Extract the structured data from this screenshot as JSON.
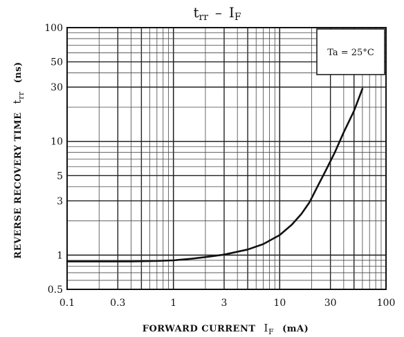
{
  "chart_data": {
    "type": "line",
    "title": {
      "y_symbol": "t",
      "y_sub": "rr",
      "separator": "–",
      "x_symbol": "I",
      "x_sub": "F"
    },
    "xlabel": {
      "text": "FORWARD CURRENT",
      "symbol": "I",
      "sub": "F",
      "unit": "(mA)"
    },
    "ylabel": {
      "text": "REVERSE RECOVERY TIME",
      "symbol": "t",
      "sub": "rr",
      "unit": "(ns)"
    },
    "x_scale": "log",
    "y_scale": "log",
    "xlim": [
      0.1,
      100
    ],
    "ylim": [
      0.5,
      100
    ],
    "grid": true,
    "x_ticks": [
      {
        "value": 0.1,
        "label": "0.1"
      },
      {
        "value": 0.3,
        "label": "0.3"
      },
      {
        "value": 1,
        "label": "1"
      },
      {
        "value": 3,
        "label": "3"
      },
      {
        "value": 10,
        "label": "10"
      },
      {
        "value": 30,
        "label": "30"
      },
      {
        "value": 100,
        "label": "100"
      }
    ],
    "y_ticks": [
      {
        "value": 0.5,
        "label": "0.5"
      },
      {
        "value": 1,
        "label": "1"
      },
      {
        "value": 3,
        "label": "3"
      },
      {
        "value": 5,
        "label": "5"
      },
      {
        "value": 10,
        "label": "10"
      },
      {
        "value": 30,
        "label": "30"
      },
      {
        "value": 50,
        "label": "50"
      },
      {
        "value": 100,
        "label": "100"
      }
    ],
    "legend": {
      "text": "Ta = 25°C",
      "placement": "top-right"
    },
    "series": [
      {
        "color": "#111111",
        "points": [
          [
            0.1,
            0.88
          ],
          [
            0.2,
            0.88
          ],
          [
            0.4,
            0.88
          ],
          [
            0.7,
            0.89
          ],
          [
            1.0,
            0.9
          ],
          [
            1.5,
            0.93
          ],
          [
            2.0,
            0.96
          ],
          [
            3.0,
            1.01
          ],
          [
            5.0,
            1.12
          ],
          [
            7.0,
            1.25
          ],
          [
            10.0,
            1.5
          ],
          [
            13.0,
            1.85
          ],
          [
            16.0,
            2.3
          ],
          [
            19.0,
            2.9
          ],
          [
            22.0,
            3.8
          ],
          [
            27.0,
            5.5
          ],
          [
            33.0,
            8.0
          ],
          [
            40.0,
            12.0
          ],
          [
            50.0,
            18.5
          ],
          [
            60.0,
            29.0
          ]
        ]
      }
    ]
  }
}
